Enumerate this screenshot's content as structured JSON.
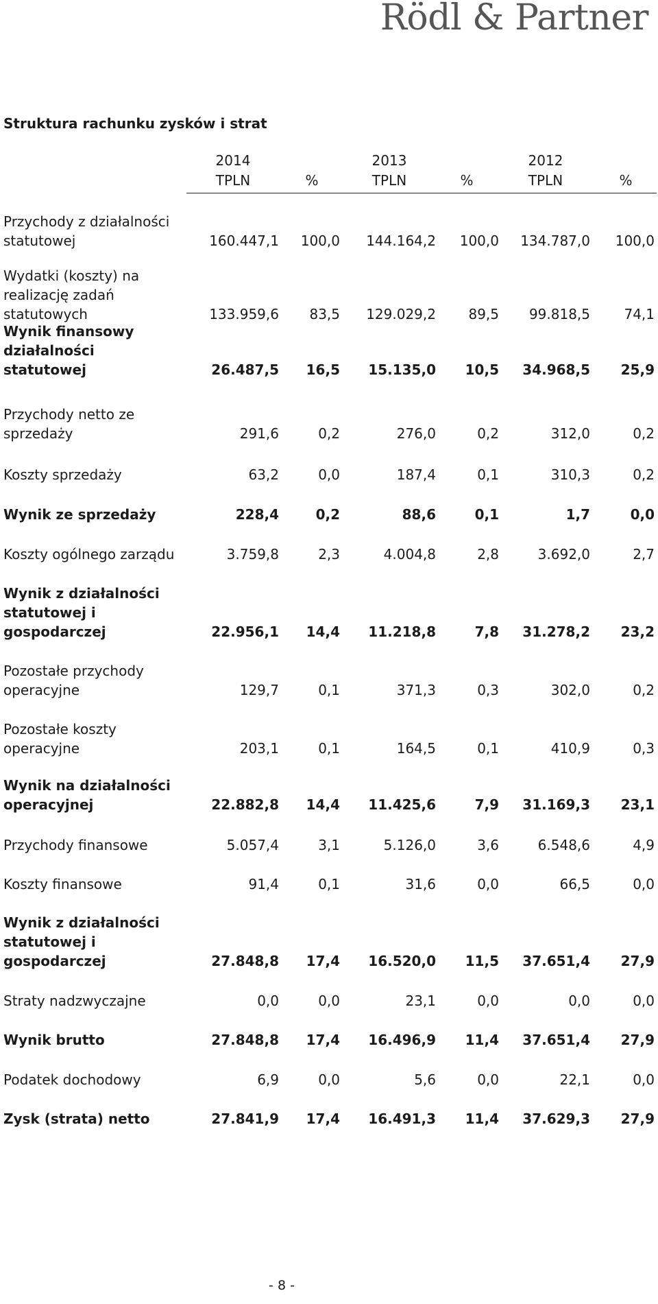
{
  "logo": "Rödl & Partner",
  "title": "Struktura rachunku zysków i strat",
  "columns": [
    {
      "year": "2014",
      "unit": "TPLN",
      "pct": "%"
    },
    {
      "year": "2013",
      "unit": "TPLN",
      "pct": "%"
    },
    {
      "year": "2012",
      "unit": "TPLN",
      "pct": "%"
    }
  ],
  "rows": [
    {
      "label": "Przychody z działalności\nstatutowej",
      "bold": false,
      "values": [
        "160.447,1",
        "100,0",
        "144.164,2",
        "100,0",
        "134.787,0",
        "100,0"
      ]
    },
    {
      "label": "Wydatki (koszty) na\nrealizację zadań\nstatutowych",
      "bold": false,
      "values": [
        "133.959,6",
        "83,5",
        "129.029,2",
        "89,5",
        "99.818,5",
        "74,1"
      ]
    },
    {
      "label": "Wynik finansowy\ndziałalności statutowej",
      "bold": true,
      "values": [
        "26.487,5",
        "16,5",
        "15.135,0",
        "10,5",
        "34.968,5",
        "25,9"
      ]
    },
    {
      "label": "Przychody netto ze\nsprzedaży",
      "bold": false,
      "values": [
        "291,6",
        "0,2",
        "276,0",
        "0,2",
        "312,0",
        "0,2"
      ]
    },
    {
      "label": "Koszty sprzedaży",
      "bold": false,
      "values": [
        "63,2",
        "0,0",
        "187,4",
        "0,1",
        "310,3",
        "0,2"
      ]
    },
    {
      "label": "Wynik ze sprzedaży",
      "bold": true,
      "values": [
        "228,4",
        "0,2",
        "88,6",
        "0,1",
        "1,7",
        "0,0"
      ]
    },
    {
      "label": "Koszty ogólnego zarządu",
      "bold": false,
      "values": [
        "3.759,8",
        "2,3",
        "4.004,8",
        "2,8",
        "3.692,0",
        "2,7"
      ]
    },
    {
      "label": "Wynik z działalności\nstatutowej i\ngospodarczej",
      "bold": true,
      "values": [
        "22.956,1",
        "14,4",
        "11.218,8",
        "7,8",
        "31.278,2",
        "23,2"
      ]
    },
    {
      "label": "Pozostałe przychody\noperacyjne",
      "bold": false,
      "values": [
        "129,7",
        "0,1",
        "371,3",
        "0,3",
        "302,0",
        "0,2"
      ]
    },
    {
      "label": "Pozostałe koszty\noperacyjne",
      "bold": false,
      "values": [
        "203,1",
        "0,1",
        "164,5",
        "0,1",
        "410,9",
        "0,3"
      ]
    },
    {
      "label": "Wynik na działalności\noperacyjnej",
      "bold": true,
      "values": [
        "22.882,8",
        "14,4",
        "11.425,6",
        "7,9",
        "31.169,3",
        "23,1"
      ]
    },
    {
      "label": "Przychody finansowe",
      "bold": false,
      "values": [
        "5.057,4",
        "3,1",
        "5.126,0",
        "3,6",
        "6.548,6",
        "4,9"
      ]
    },
    {
      "label": "Koszty finansowe",
      "bold": false,
      "values": [
        "91,4",
        "0,1",
        "31,6",
        "0,0",
        "66,5",
        "0,0"
      ]
    },
    {
      "label": "Wynik z działalności\nstatutowej i\ngospodarczej",
      "bold": true,
      "values": [
        "27.848,8",
        "17,4",
        "16.520,0",
        "11,5",
        "37.651,4",
        "27,9"
      ]
    },
    {
      "label": "Straty nadzwyczajne",
      "bold": false,
      "values": [
        "0,0",
        "0,0",
        "23,1",
        "0,0",
        "0,0",
        "0,0"
      ]
    },
    {
      "label": "Wynik brutto",
      "bold": true,
      "values": [
        "27.848,8",
        "17,4",
        "16.496,9",
        "11,4",
        "37.651,4",
        "27,9"
      ]
    },
    {
      "label": "Podatek dochodowy",
      "bold": false,
      "values": [
        "6,9",
        "0,0",
        "5,6",
        "0,0",
        "22,1",
        "0,0"
      ]
    },
    {
      "label": "Zysk (strata) netto",
      "bold": true,
      "values": [
        "27.841,9",
        "17,4",
        "16.491,3",
        "11,4",
        "37.629,3",
        "27,9"
      ]
    }
  ],
  "footer": "- 8 -"
}
